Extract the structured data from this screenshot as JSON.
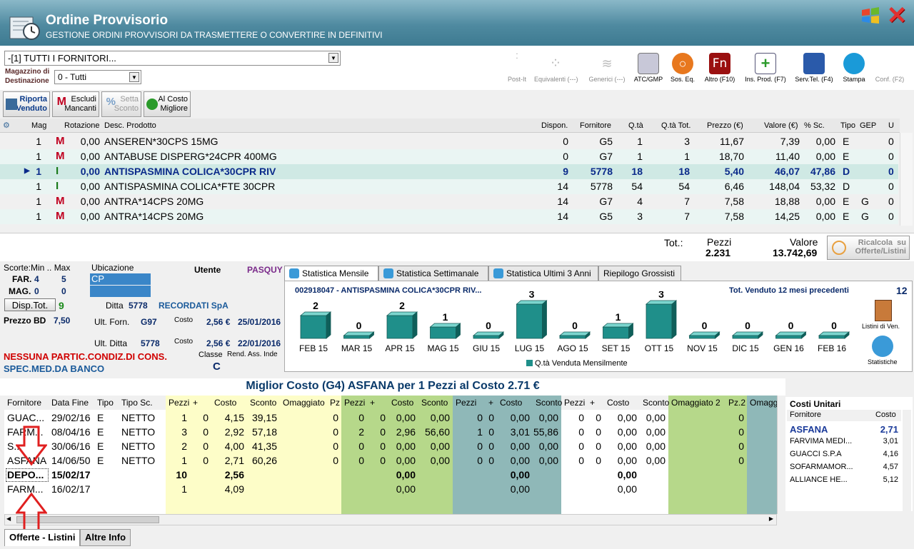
{
  "window": {
    "title": "Ordine Provvisorio",
    "subtitle": "GESTIONE ORDINI PROVVISORI DA TRASMETTERE O CONVERTIRE IN DEFINITIVI",
    "close_icon": "close-x-icon",
    "windows_icon": "windows-flag-icon"
  },
  "filters": {
    "fornitore_value": "-[1] TUTTI I FORNITORI...",
    "magazzino_label_1": "Magazzino di",
    "magazzino_label_2": "Destinazione",
    "magazzino_value": "0 - Tutti"
  },
  "toolbar": [
    {
      "label": "Post-It",
      "icon": "postit-icon",
      "disabled": true
    },
    {
      "label": "Equivalenti (---)",
      "icon": "equivalenti-icon",
      "disabled": true
    },
    {
      "label": "Generici (---)",
      "icon": "generici-icon",
      "disabled": true
    },
    {
      "label": "ATC/GMP",
      "icon": "atc-gmp-icon",
      "disabled": false
    },
    {
      "label": "Sos. Eq.",
      "icon": "search-icon",
      "disabled": false
    },
    {
      "label": "Altro (F10)",
      "icon": "fn-icon",
      "disabled": false
    },
    {
      "label": "Ins. Prod. (F7)",
      "icon": "add-product-icon",
      "disabled": false
    },
    {
      "label": "Serv.Tel. (F4)",
      "icon": "network-icon",
      "disabled": false
    },
    {
      "label": "Stampa",
      "icon": "printer-icon",
      "disabled": false
    },
    {
      "label": "Conf. (F2)",
      "icon": "config-icon",
      "disabled": true
    }
  ],
  "actions": {
    "riporta_1": "Riporta",
    "riporta_2": "Venduto",
    "escludi_1": "Escludi",
    "escludi_2": "Mancanti",
    "setta_1": "Setta",
    "setta_2": "Sconto",
    "alcosto_1": "Al Costo",
    "alcosto_2": "Migliore"
  },
  "products": {
    "columns": [
      "Mag",
      "Rotazione",
      "Desc. Prodotto",
      "Dispon.",
      "Fornitore",
      "Q.tà",
      "Q.tà Tot.",
      "Prezzo (€)",
      "Valore (€)",
      "% Sc.",
      "Tipo",
      "GEP",
      "U"
    ],
    "rows": [
      {
        "mag": "1",
        "icon": "M",
        "rot": "0,00",
        "desc": "ANSEREN*30CPS 15MG",
        "disp": "0",
        "forn": "G5",
        "qta": "1",
        "qtot": "3",
        "prezzo": "11,67",
        "valore": "7,39",
        "sc": "0,00",
        "tipo": "E",
        "gep": "",
        "u": "0"
      },
      {
        "mag": "1",
        "icon": "M",
        "rot": "0,00",
        "desc": "ANTABUSE DISPERG*24CPR 400MG",
        "disp": "0",
        "forn": "G7",
        "qta": "1",
        "qtot": "1",
        "prezzo": "18,70",
        "valore": "11,40",
        "sc": "0,00",
        "tipo": "E",
        "gep": "",
        "u": "0"
      },
      {
        "mag": "1",
        "icon": "I",
        "rot": "0,00",
        "desc": "ANTISPASMINA COLICA*30CPR RIV",
        "disp": "9",
        "forn": "5778",
        "qta": "18",
        "qtot": "18",
        "prezzo": "5,40",
        "valore": "46,07",
        "sc": "47,86",
        "tipo": "D",
        "gep": "",
        "u": "0"
      },
      {
        "mag": "1",
        "icon": "I",
        "rot": "0,00",
        "desc": "ANTISPASMINA COLICA*FTE 30CPR",
        "disp": "14",
        "forn": "5778",
        "qta": "54",
        "qtot": "54",
        "prezzo": "6,46",
        "valore": "148,04",
        "sc": "53,32",
        "tipo": "D",
        "gep": "",
        "u": "0"
      },
      {
        "mag": "1",
        "icon": "M",
        "rot": "0,00",
        "desc": "ANTRA*14CPS 20MG",
        "disp": "14",
        "forn": "G7",
        "qta": "4",
        "qtot": "7",
        "prezzo": "7,58",
        "valore": "18,88",
        "sc": "0,00",
        "tipo": "E",
        "gep": "G",
        "u": "0"
      },
      {
        "mag": "1",
        "icon": "M",
        "rot": "0,00",
        "desc": "ANTRA*14CPS 20MG",
        "disp": "14",
        "forn": "G5",
        "qta": "3",
        "qtot": "7",
        "prezzo": "7,58",
        "valore": "14,25",
        "sc": "0,00",
        "tipo": "E",
        "gep": "G",
        "u": "0"
      }
    ]
  },
  "totals": {
    "tot_label": "Tot.:",
    "pezzi_label": "Pezzi",
    "pezzi_value": "2.231",
    "valore_label": "Valore",
    "valore_value": "13.742,69",
    "ricalcola_1": "Ricalcola",
    "ricalcola_2": "su",
    "ricalcola_3": "Offerte/Listini"
  },
  "info": {
    "scorte_label": "Scorte:Min .. Max",
    "ubicazione_label": "Ubicazione",
    "utente_label": "Utente",
    "utente_value": "PASQUY",
    "far_label": "FAR.",
    "far_min": "4",
    "far_max": "5",
    "far_ubic": "CP",
    "mag_label": "MAG.",
    "mag_min": "0",
    "mag_max": "0",
    "disp_btn": "Disp.Tot.",
    "disp_value": "9",
    "ditta_label": "Ditta",
    "ditta_code": "5778",
    "ditta_name": "RECORDATI SpA",
    "prezzo_label": "Prezzo BD",
    "prezzo_value": "7,50",
    "ult_forn_label": "Ult. Forn.",
    "ult_forn_value": "G97",
    "costo_label": "Costo",
    "costo1_value": "2,56 €",
    "costo1_date": "25/01/2016",
    "ult_ditta_label": "Ult. Ditta",
    "ult_ditta_value": "5778",
    "costo2_value": "2,56 €",
    "costo2_date": "22/01/2016",
    "nessuna": "NESSUNA PARTIC.CONDIZ.DI CONS.",
    "spec": "SPEC.MED.DA BANCO",
    "classe_label": "Classe",
    "classe_value": "C",
    "rend_label": "Rend. Ass. Inde"
  },
  "stat_tabs": [
    "Statistica Mensile",
    "Statistica Settimanale",
    "Statistica Ultimi 3 Anni",
    "Riepilogo Grossisti"
  ],
  "chart_data": {
    "type": "bar",
    "title": "002918047 - ANTISPASMINA COLICA*30CPR RIV...",
    "summary_label": "Tot. Venduto 12 mesi precedenti",
    "summary_value": "12",
    "categories": [
      "FEB 15",
      "MAR 15",
      "APR 15",
      "MAG 15",
      "GIU 15",
      "LUG 15",
      "AGO 15",
      "SET 15",
      "OTT 15",
      "NOV 15",
      "DIC 15",
      "GEN 16",
      "FEB 16"
    ],
    "series": [
      {
        "name": "Q.tà Venduta Mensilmente",
        "values": [
          2,
          0,
          2,
          1,
          0,
          3,
          0,
          1,
          3,
          0,
          0,
          0,
          0
        ]
      }
    ],
    "ylim": [
      0,
      3
    ],
    "color": "#1f8f8a",
    "side_1": "Listini di Ven.",
    "side_2": "Statistiche"
  },
  "miglior": {
    "title": "Miglior Costo (G4) ASFANA per 1 Pezzi al Costo 2.71 €"
  },
  "offerte": {
    "headers": [
      "Fornitore",
      "Data Fine",
      "Tipo",
      "Tipo Sc.",
      "Pezzi",
      "+",
      "Costo",
      "Sconto",
      "Omaggiato",
      "Pz",
      "Pezzi",
      "+",
      "Costo",
      "Sconto",
      "Pezzi",
      "+",
      "Costo",
      "Sconto",
      "Pezzi",
      "+",
      "Costo",
      "Sconto",
      "Omaggiato 2",
      "Pz.2",
      "Omagg"
    ],
    "rows": [
      {
        "forn": "GUAC...",
        "data": "29/02/16",
        "tipo": "E",
        "tsc": "NETTO",
        "c": [
          "1",
          "0",
          "4,15",
          "39,15",
          "",
          "0",
          "0",
          "0",
          "0,00",
          "0,00",
          "0",
          "0",
          "0,00",
          "0,00",
          "0",
          "0",
          "0,00",
          "0,00",
          "",
          "0",
          ""
        ],
        "bold": false
      },
      {
        "forn": "FARM...",
        "data": "08/04/16",
        "tipo": "E",
        "tsc": "NETTO",
        "c": [
          "3",
          "0",
          "2,92",
          "57,18",
          "",
          "0",
          "2",
          "0",
          "2,96",
          "56,60",
          "1",
          "0",
          "3,01",
          "55,86",
          "0",
          "0",
          "0,00",
          "0,00",
          "",
          "0",
          ""
        ],
        "bold": false
      },
      {
        "forn": "S...",
        "data": "30/06/16",
        "tipo": "E",
        "tsc": "NETTO",
        "c": [
          "2",
          "0",
          "4,00",
          "41,35",
          "",
          "0",
          "0",
          "0",
          "0,00",
          "0,00",
          "0",
          "0",
          "0,00",
          "0,00",
          "0",
          "0",
          "0,00",
          "0,00",
          "",
          "0",
          ""
        ],
        "bold": false
      },
      {
        "forn": "ASFANA",
        "data": "14/06/50",
        "tipo": "E",
        "tsc": "NETTO",
        "c": [
          "1",
          "0",
          "2,71",
          "60,26",
          "",
          "0",
          "0",
          "0",
          "0,00",
          "0,00",
          "0",
          "0",
          "0,00",
          "0,00",
          "0",
          "0",
          "0,00",
          "0,00",
          "",
          "0",
          ""
        ],
        "bold": false
      },
      {
        "forn": "DEPO...",
        "data": "15/02/17",
        "tipo": "",
        "tsc": "",
        "c": [
          "10",
          "",
          "2,56",
          "",
          "",
          "",
          "",
          "",
          "0,00",
          "",
          "",
          "",
          "0,00",
          "",
          "",
          "",
          "0,00",
          "",
          "",
          "",
          ""
        ],
        "bold": true
      },
      {
        "forn": "FARM...",
        "data": "16/02/17",
        "tipo": "",
        "tsc": "",
        "c": [
          "1",
          "",
          "4,09",
          "",
          "",
          "",
          "",
          "",
          "0,00",
          "",
          "",
          "",
          "0,00",
          "",
          "",
          "",
          "0,00",
          "",
          "",
          "",
          ""
        ],
        "bold": false
      }
    ]
  },
  "costi": {
    "title": "Costi Unitari",
    "col_forn": "Fornitore",
    "col_costo": "Costo",
    "rows": [
      {
        "forn": "ASFANA",
        "costo": "2,71"
      },
      {
        "forn": "FARVIMA MEDI...",
        "costo": "3,01"
      },
      {
        "forn": "GUACCI S.P.A",
        "costo": "4,16"
      },
      {
        "forn": "SOFARMAMOR...",
        "costo": "4,57"
      },
      {
        "forn": "ALLIANCE HE...",
        "costo": "5,12"
      }
    ]
  },
  "bottom_tabs": [
    "Offerte - Listini",
    "Altre Info"
  ]
}
